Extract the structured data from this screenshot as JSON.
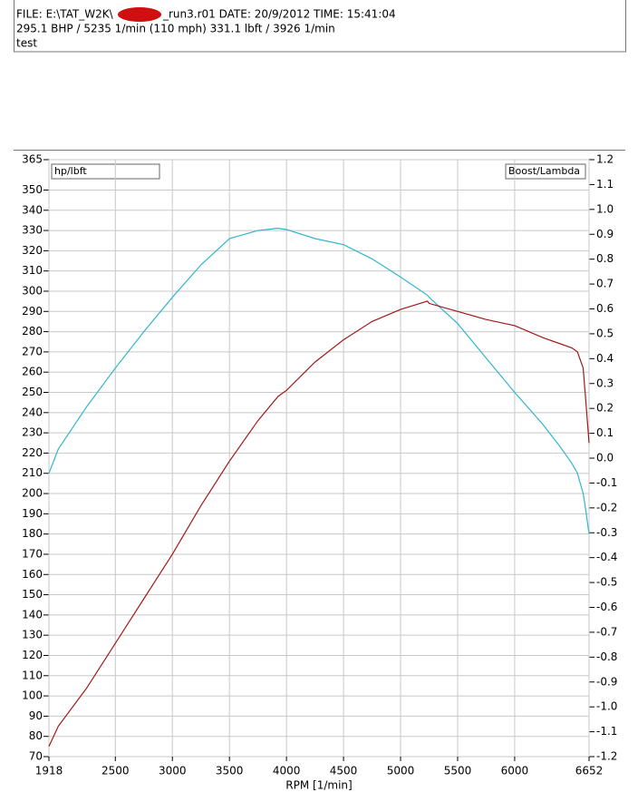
{
  "header": {
    "file_prefix": "FILE: E:\\TAT_W2K\\",
    "file_suffix": "_run3.r01  DATE: 20/9/2012  TIME: 15:41:04",
    "summary": "295.1 BHP / 5235 1/min (110 mph)    331.1 lbft / 3926 1/min",
    "note": "test"
  },
  "chart_data": {
    "type": "line",
    "ylabel": "hp/lbft",
    "y2label": "Boost/Lambda",
    "xlabel": "RPM  [1/min]",
    "x": [
      1918,
      2000,
      2250,
      2500,
      2750,
      3000,
      3250,
      3500,
      3750,
      3926,
      4000,
      4250,
      4500,
      4750,
      5000,
      5235,
      5250,
      5500,
      5750,
      6000,
      6250,
      6400,
      6500,
      6550,
      6600,
      6620,
      6652
    ],
    "series": [
      {
        "name": "lbft",
        "color": "#2fb6cf",
        "values": [
          210,
          222,
          243,
          262,
          280,
          297,
          313,
          326,
          330,
          331.1,
          330.5,
          326,
          323,
          316,
          307,
          298,
          297,
          284,
          267,
          250,
          234,
          223,
          215,
          210,
          200,
          193,
          180
        ]
      },
      {
        "name": "BHP",
        "color": "#a01818",
        "values": [
          75,
          85,
          104,
          126,
          148,
          170,
          194,
          216,
          236,
          248,
          251,
          265,
          276,
          285,
          291,
          295.1,
          294,
          290,
          286,
          283,
          277,
          274,
          272,
          270,
          262,
          248,
          225
        ]
      }
    ],
    "xlim": [
      1918,
      6652
    ],
    "xticks": [
      1918,
      2500,
      3000,
      3500,
      4000,
      4500,
      5000,
      5500,
      6000,
      6652
    ],
    "ylim": [
      70,
      365
    ],
    "yticks": [
      365,
      350,
      340,
      330,
      320,
      310,
      300,
      290,
      280,
      270,
      260,
      250,
      240,
      230,
      220,
      210,
      200,
      190,
      180,
      170,
      160,
      150,
      140,
      130,
      120,
      110,
      100,
      90,
      80,
      70
    ],
    "y2lim": [
      -1.2,
      1.2
    ],
    "y2ticks": [
      1.2,
      1.1,
      1.0,
      0.9,
      0.8,
      0.7,
      0.6,
      0.5,
      0.4,
      0.3,
      0.2,
      0.1,
      0.0,
      -0.1,
      -0.2,
      -0.3,
      -0.4,
      -0.5,
      -0.6,
      -0.7,
      -0.8,
      -0.9,
      -1.0,
      -1.1,
      -1.2
    ],
    "grid": true
  }
}
